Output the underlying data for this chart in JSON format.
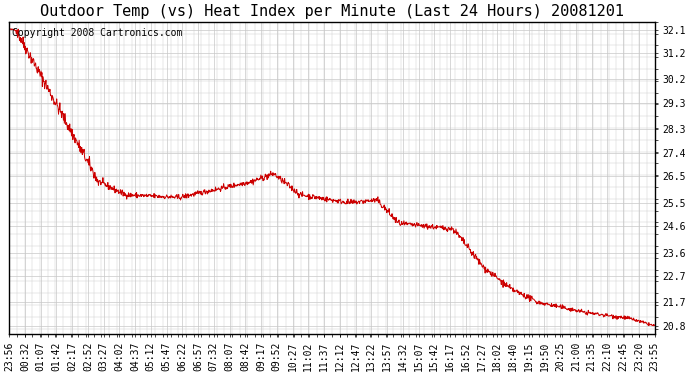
{
  "title": "Outdoor Temp (vs) Heat Index per Minute (Last 24 Hours) 20081201",
  "copyright_text": "Copyright 2008 Cartronics.com",
  "line_color": "#cc0000",
  "background_color": "#ffffff",
  "grid_color": "#c8c8c8",
  "yticks": [
    20.8,
    21.7,
    22.7,
    23.6,
    24.6,
    25.5,
    26.5,
    27.4,
    28.3,
    29.3,
    30.2,
    31.2,
    32.1
  ],
  "ylim": [
    20.5,
    32.4
  ],
  "xtick_labels": [
    "23:56",
    "00:32",
    "01:07",
    "01:42",
    "02:17",
    "02:52",
    "03:27",
    "04:02",
    "04:37",
    "05:12",
    "05:47",
    "06:22",
    "06:57",
    "07:32",
    "08:07",
    "08:42",
    "09:17",
    "09:52",
    "10:27",
    "11:02",
    "11:37",
    "12:12",
    "12:47",
    "13:22",
    "13:57",
    "14:32",
    "15:07",
    "15:42",
    "16:17",
    "16:52",
    "17:27",
    "18:02",
    "18:40",
    "19:15",
    "19:50",
    "20:25",
    "21:00",
    "21:35",
    "22:10",
    "22:45",
    "23:20",
    "23:55"
  ],
  "num_points": 1440,
  "title_fontsize": 11,
  "copyright_fontsize": 7,
  "tick_fontsize": 7,
  "figwidth": 6.9,
  "figheight": 3.75,
  "dpi": 100
}
